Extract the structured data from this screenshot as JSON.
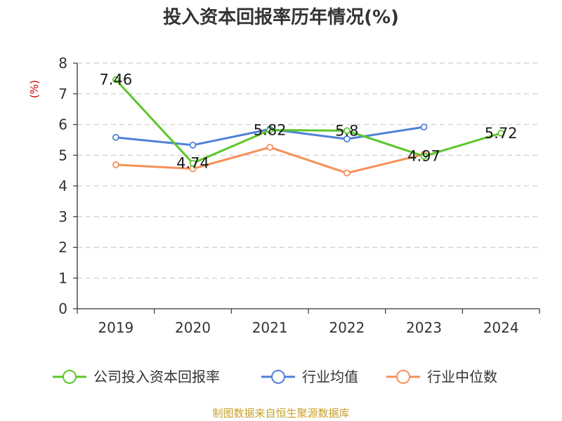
{
  "chart_data": {
    "type": "line",
    "title": "投入资本回报率历年情况(%)",
    "ylabel": "(%)",
    "xlabel": "",
    "categories": [
      "2019",
      "2020",
      "2021",
      "2022",
      "2023",
      "2024"
    ],
    "ylim": [
      0,
      8
    ],
    "yticks": [
      0,
      1,
      2,
      3,
      4,
      5,
      6,
      7,
      8
    ],
    "grid": true,
    "legend_position": "bottom",
    "series": [
      {
        "name": "公司投入资本回报率",
        "color": "#5cc62a",
        "values": [
          7.46,
          4.74,
          5.82,
          5.8,
          4.97,
          5.72
        ],
        "labels": [
          "7.46",
          "4.74",
          "5.82",
          "5.8",
          "4.97",
          "5.72"
        ],
        "show_labels": true
      },
      {
        "name": "行业均值",
        "color": "#4f81d9",
        "values": [
          5.58,
          5.33,
          5.85,
          5.53,
          5.92,
          null
        ],
        "show_labels": false
      },
      {
        "name": "行业中位数",
        "color": "#f5905a",
        "values": [
          4.69,
          4.56,
          5.26,
          4.42,
          5.03,
          null
        ],
        "show_labels": false
      }
    ],
    "source": "制图数据来自恒生聚源数据库"
  }
}
